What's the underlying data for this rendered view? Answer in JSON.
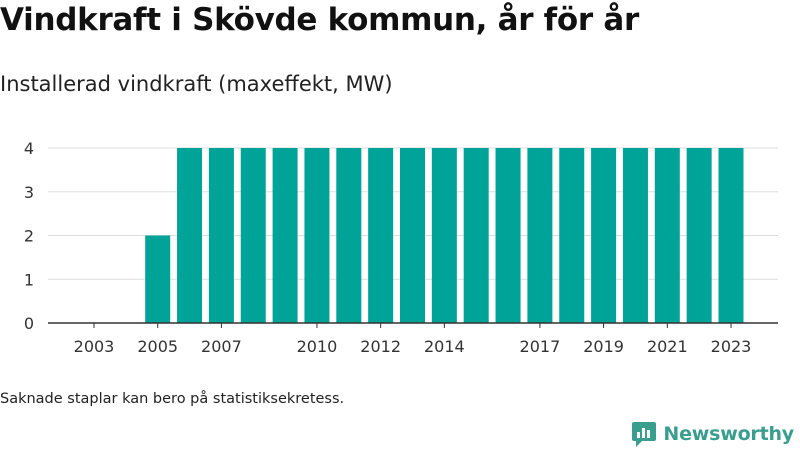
{
  "header": {
    "title": "Vindkraft i Skövde kommun, år för år",
    "subtitle": "Installerad vindkraft (maxeffekt, MW)"
  },
  "footer": {
    "note": "Saknade staplar kan bero på statistiksekretess.",
    "brand": "Newsworthy"
  },
  "colors": {
    "bar": "#00a398",
    "grid": "#dddddd",
    "axis": "#333333",
    "brand": "#3a9e8f"
  },
  "chart_data": {
    "type": "bar",
    "title": "Vindkraft i Skövde kommun, år för år",
    "subtitle": "Installerad vindkraft (maxeffekt, MW)",
    "xlabel": "",
    "ylabel": "",
    "categories": [
      2003,
      2004,
      2005,
      2006,
      2007,
      2008,
      2009,
      2010,
      2011,
      2012,
      2013,
      2014,
      2015,
      2016,
      2017,
      2018,
      2019,
      2020,
      2021,
      2022,
      2023
    ],
    "values": [
      0,
      0,
      2,
      4,
      4,
      4,
      4,
      4,
      4,
      4,
      4,
      4,
      4,
      4,
      4,
      4,
      4,
      4,
      4,
      4,
      4
    ],
    "x_tick_labels": [
      2003,
      2005,
      2007,
      2010,
      2012,
      2014,
      2017,
      2019,
      2021,
      2023
    ],
    "y_ticks": [
      0,
      1,
      2,
      3,
      4
    ],
    "ylim": [
      0,
      4
    ],
    "grid": true,
    "legend": "none"
  }
}
